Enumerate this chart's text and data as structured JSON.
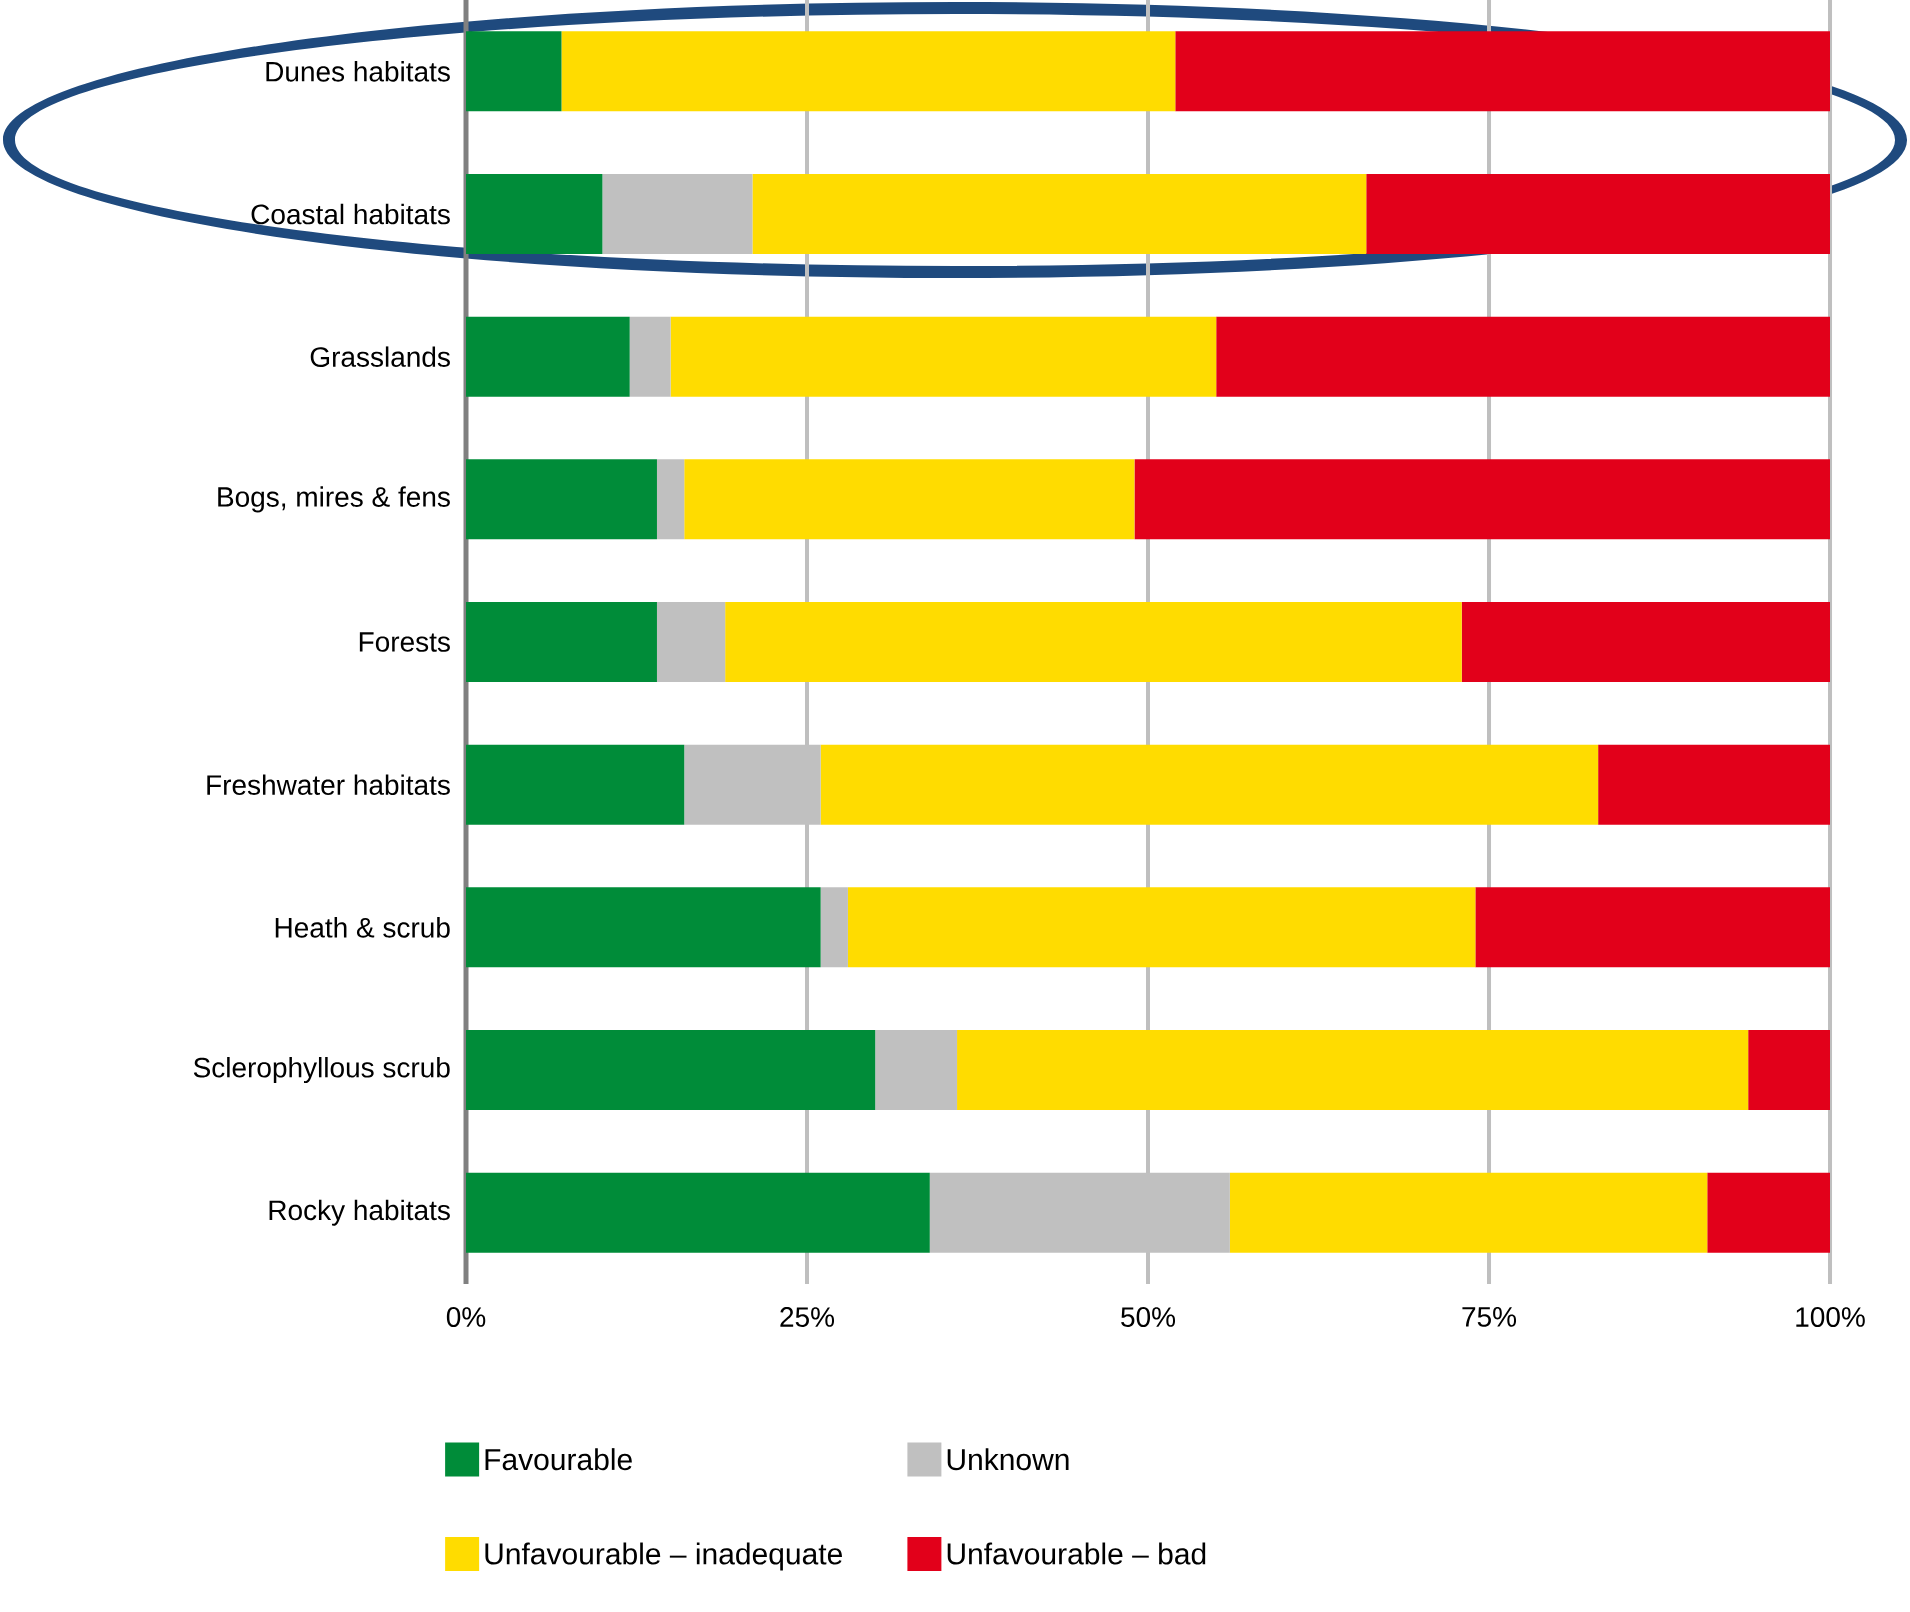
{
  "chart_data": {
    "type": "bar",
    "orientation": "horizontal",
    "stacked": true,
    "categories": [
      "Dunes habitats",
      "Coastal habitats",
      "Grasslands",
      "Bogs, mires & fens",
      "Forests",
      "Freshwater habitats",
      "Heath & scrub",
      "Sclerophyllous scrub",
      "Rocky habitats"
    ],
    "series": [
      {
        "name": "Favourable",
        "color": "#008c39",
        "values": [
          7,
          10,
          12,
          14,
          14,
          16,
          26,
          30,
          34
        ]
      },
      {
        "name": "Unknown",
        "color": "#c0c0c0",
        "values": [
          0,
          11,
          3,
          2,
          5,
          10,
          2,
          6,
          22
        ]
      },
      {
        "name": "Unfavourable – inadequate",
        "color": "#ffdc00",
        "values": [
          45,
          45,
          40,
          33,
          54,
          57,
          46,
          58,
          35
        ]
      },
      {
        "name": "Unfavourable – bad",
        "color": "#e2001a",
        "values": [
          48,
          34,
          45,
          51,
          27,
          17,
          26,
          6,
          9
        ]
      }
    ],
    "xlim": [
      0,
      100
    ],
    "xticks": [
      {
        "value": 0,
        "label": "0%"
      },
      {
        "value": 25,
        "label": "25%"
      },
      {
        "value": 50,
        "label": "50%"
      },
      {
        "value": 75,
        "label": "75%"
      },
      {
        "value": 100,
        "label": "100%"
      }
    ],
    "grid": "x",
    "legend": "bottom"
  }
}
